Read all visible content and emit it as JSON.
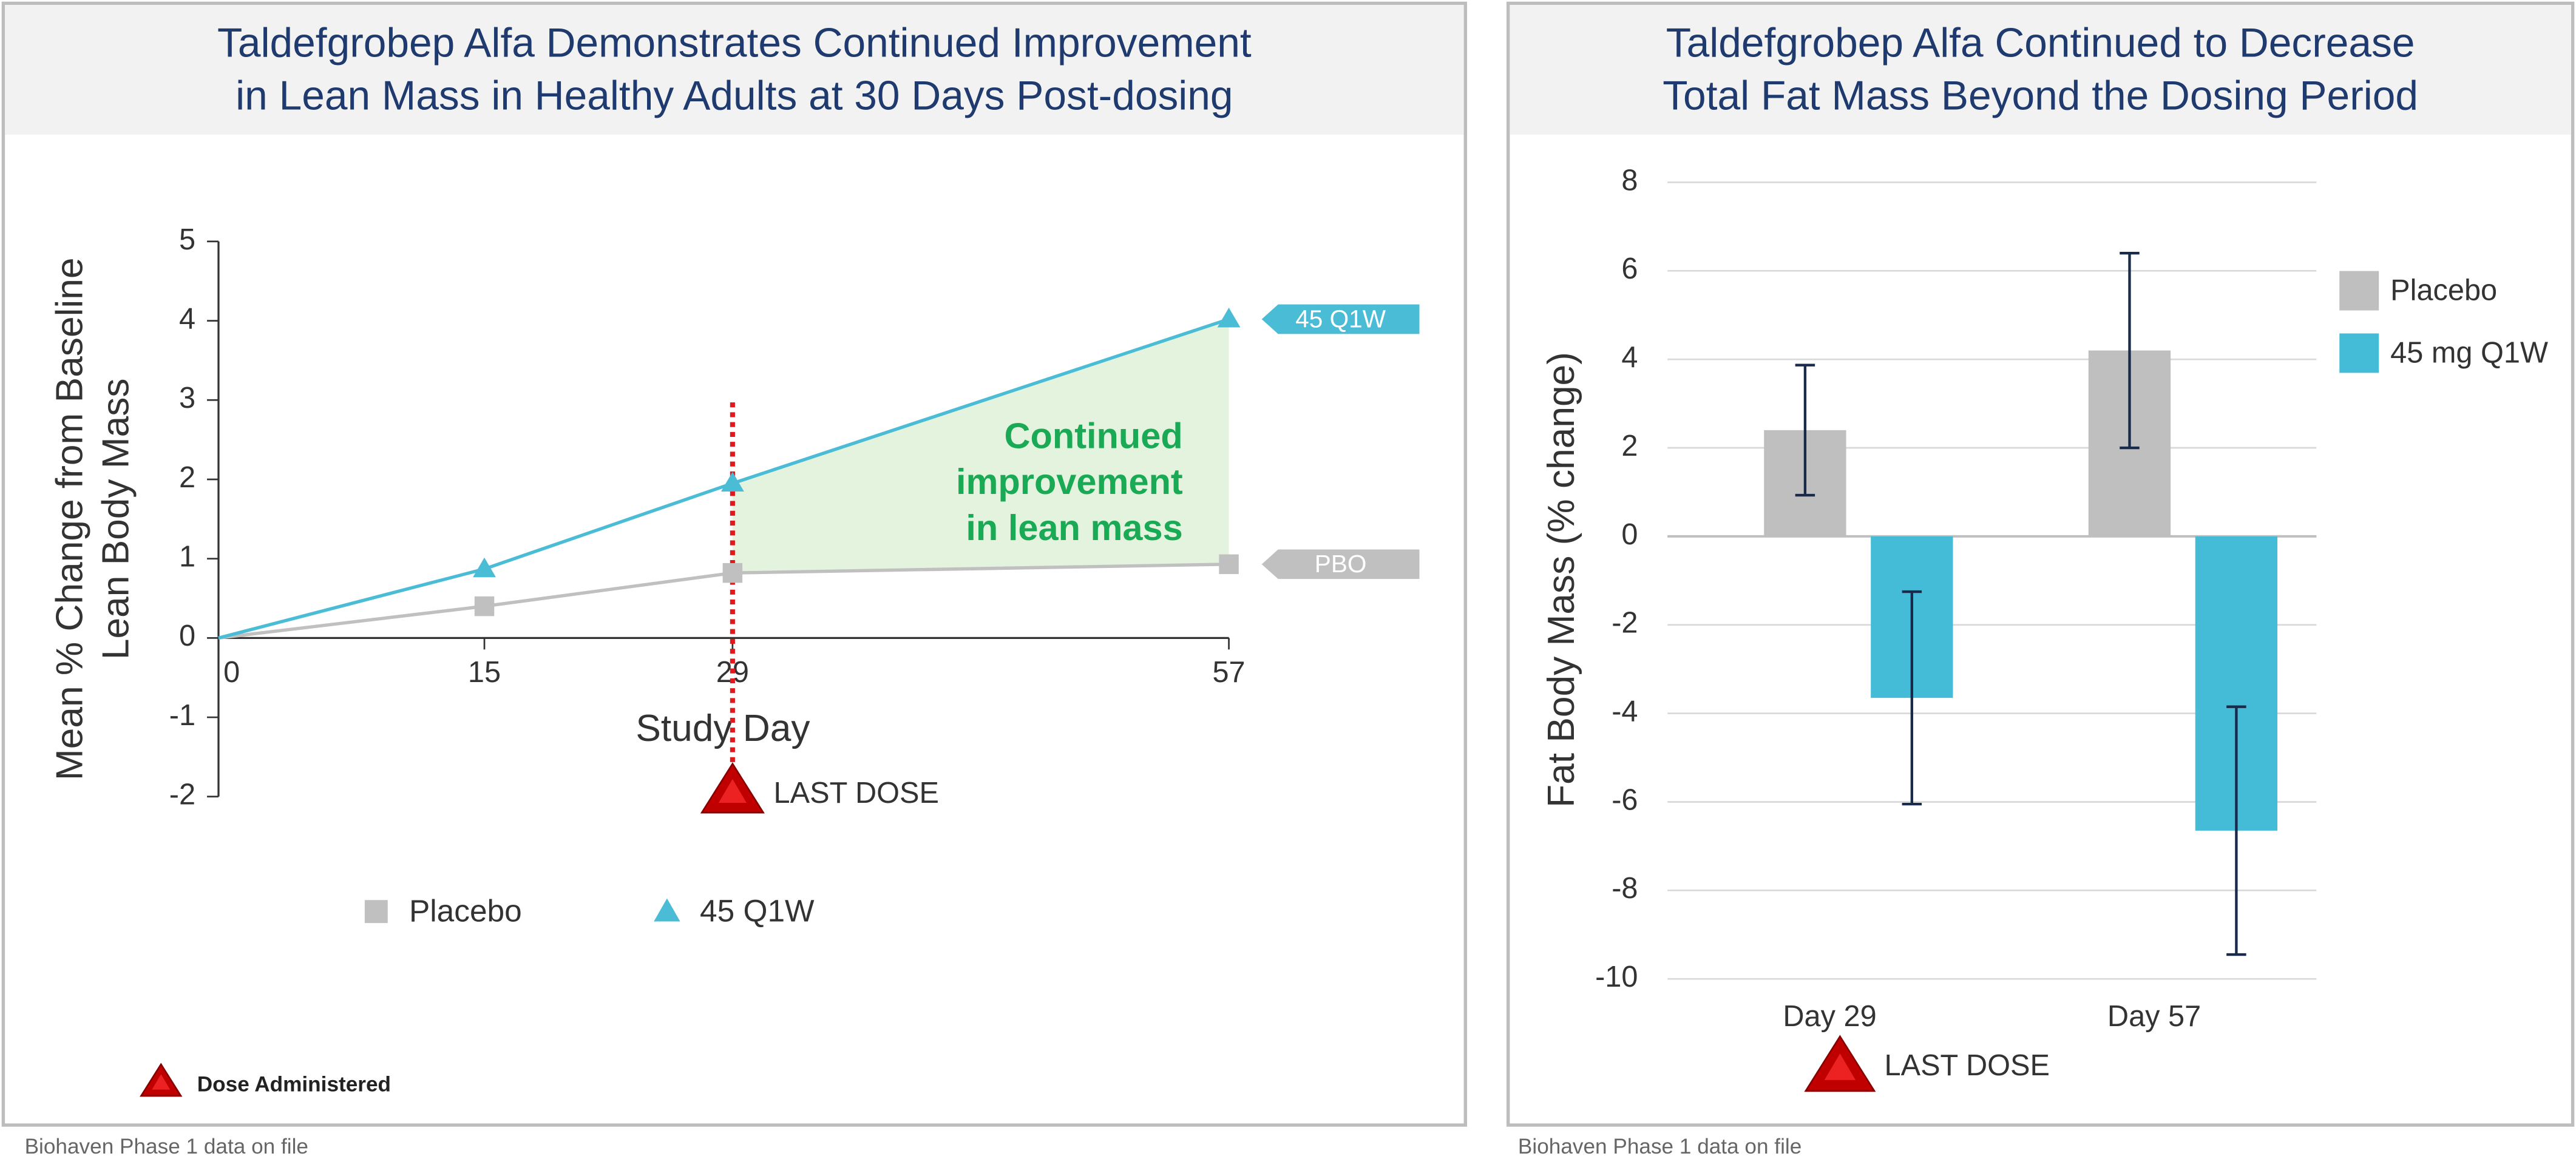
{
  "chart_data": [
    {
      "type": "line",
      "title": [
        "Taldefgrobep Alfa Demonstrates Continued Improvement",
        "in Lean Mass in Healthy Adults at 30 Days Post-dosing"
      ],
      "x_label": "Study Day",
      "y_label": [
        "Mean % Change from Baseline",
        "Lean Body Mass"
      ],
      "x": [
        0,
        15,
        29,
        57
      ],
      "xlim": [
        0,
        57
      ],
      "xticks": [
        0,
        15,
        29,
        57
      ],
      "ylim": [
        -2,
        5
      ],
      "yticks": [
        -2,
        -1,
        0,
        1,
        2,
        3,
        4,
        5
      ],
      "series": [
        {
          "name": "Placebo",
          "end_label": "PBO",
          "color": "#c0c0c0",
          "marker": "square",
          "values": [
            0,
            0.4,
            0.82,
            0.93
          ]
        },
        {
          "name": "45 Q1W",
          "color": "#4bbcd6",
          "marker": "triangle",
          "values": [
            0,
            0.87,
            1.95,
            4.02
          ]
        }
      ],
      "annotation": [
        "Continued",
        "improvement",
        "in lean mass"
      ],
      "last_dose_x": 29,
      "last_dose_label": "LAST DOSE",
      "dose_legend": "Dose Administered",
      "source": "Biohaven Phase 1 data on file"
    },
    {
      "type": "bar",
      "title": [
        "Taldefgrobep Alfa Continued to Decrease",
        "Total Fat Mass Beyond the Dosing Period"
      ],
      "y_label": "Fat Body Mass (% change)",
      "categories": [
        "Day 29",
        "Day 57"
      ],
      "ylim": [
        -10,
        8
      ],
      "yticks": [
        -10,
        -8,
        -6,
        -4,
        -2,
        0,
        2,
        4,
        6,
        8
      ],
      "grid": true,
      "series": [
        {
          "name": "Placebo",
          "color": "#bfbfbf",
          "values": [
            2.4,
            4.2
          ],
          "errors": [
            1.47,
            2.2
          ]
        },
        {
          "name": "45 mg Q1W",
          "color": "#44bcd8",
          "values": [
            -3.65,
            -6.65
          ],
          "errors": [
            2.4,
            2.8
          ]
        }
      ],
      "last_dose_label": "LAST DOSE",
      "source": "Biohaven Phase 1 data on file"
    }
  ]
}
